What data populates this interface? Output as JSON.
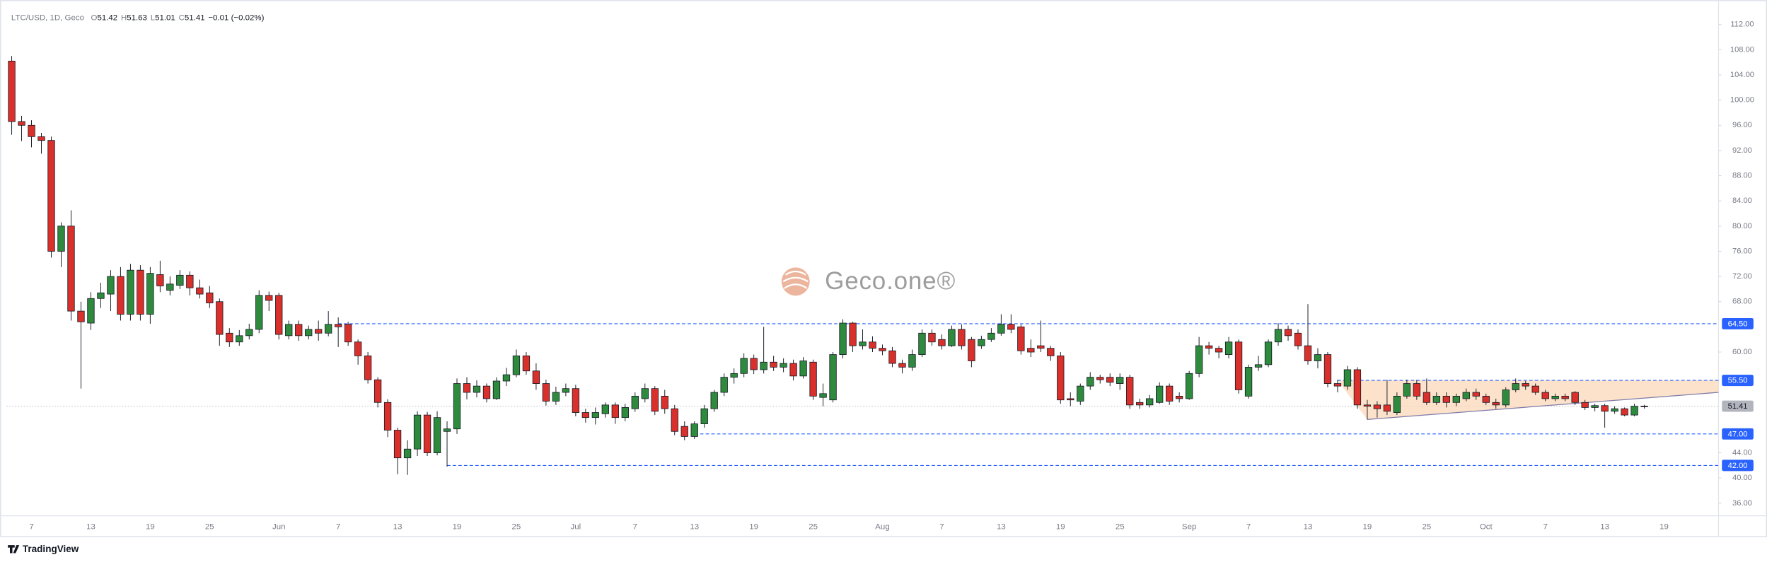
{
  "chart_data": {
    "type": "candlestick",
    "title": "LTC/USD, 1D, Geco",
    "legend": [
      {
        "label": "O",
        "value": 51.42
      },
      {
        "label": "H",
        "value": 51.63
      },
      {
        "label": "L",
        "value": 51.01
      },
      {
        "label": "C",
        "value": 51.41
      }
    ],
    "change": "−0.01 (−0.02%)",
    "watermark": "Geco.one®",
    "footer": "TradingView",
    "up_color": "#2e8b3e",
    "down_color": "#d9302c",
    "line_color": "#2962ff",
    "price_color": "#b2b5be",
    "pattern_color": "#fbd8b8",
    "grid": false,
    "ylim": [
      34,
      115
    ],
    "yticks": [
      {
        "value": 36,
        "label": "36.00"
      },
      {
        "value": 40,
        "label": "40.00"
      },
      {
        "value": 44,
        "label": "44.00"
      },
      {
        "value": 60,
        "label": "60.00"
      },
      {
        "value": 68,
        "label": "68.00"
      },
      {
        "value": 72,
        "label": "72.00"
      },
      {
        "value": 76,
        "label": "76.00"
      },
      {
        "value": 80,
        "label": "80.00"
      },
      {
        "value": 84,
        "label": "84.00"
      },
      {
        "value": 88,
        "label": "88.00"
      },
      {
        "value": 92,
        "label": "92.00"
      },
      {
        "value": 96,
        "label": "96.00"
      },
      {
        "value": 100,
        "label": "100.00"
      },
      {
        "value": 104,
        "label": "104.00"
      },
      {
        "value": 108,
        "label": "108.00"
      },
      {
        "value": 112,
        "label": "112.00"
      }
    ],
    "hlines": [
      {
        "value": 64.5,
        "label": "64.50"
      },
      {
        "value": 55.5,
        "label": "55.50"
      },
      {
        "value": 47,
        "label": "47.00"
      },
      {
        "value": 42,
        "label": "42.00"
      }
    ],
    "last_price": {
      "value": 51.41,
      "label": "51.41"
    },
    "trendline": [
      49.3,
      53.6
    ],
    "categories": [
      null,
      null,
      "7",
      null,
      null,
      null,
      null,
      null,
      "13",
      null,
      null,
      null,
      null,
      null,
      "19",
      null,
      null,
      null,
      null,
      null,
      "25",
      null,
      null,
      null,
      null,
      null,
      null,
      "Jun",
      null,
      null,
      null,
      null,
      null,
      "7",
      null,
      null,
      null,
      null,
      null,
      "13",
      null,
      null,
      null,
      null,
      null,
      "19",
      null,
      null,
      null,
      null,
      null,
      "25",
      null,
      null,
      null,
      null,
      null,
      "Jul",
      null,
      null,
      null,
      null,
      null,
      "7",
      null,
      null,
      null,
      null,
      null,
      "13",
      null,
      null,
      null,
      null,
      null,
      "19",
      null,
      null,
      null,
      null,
      null,
      "25",
      null,
      null,
      null,
      null,
      null,
      null,
      "Aug",
      null,
      null,
      null,
      null,
      null,
      "7",
      null,
      null,
      null,
      null,
      null,
      "13",
      null,
      null,
      null,
      null,
      null,
      "19",
      null,
      null,
      null,
      null,
      null,
      "25",
      null,
      null,
      null,
      null,
      null,
      null,
      "Sep",
      null,
      null,
      null,
      null,
      null,
      "7",
      null,
      null,
      null,
      null,
      null,
      "13",
      null,
      null,
      null,
      null,
      null,
      "19",
      null,
      null,
      null,
      null,
      null,
      "25",
      null,
      null,
      null,
      null,
      null,
      "Oct",
      null,
      null,
      null,
      null,
      null,
      "7",
      null,
      null,
      null,
      null,
      null,
      "13",
      null,
      null,
      null,
      null,
      null,
      "19",
      null,
      null,
      null,
      null,
      null
    ],
    "open": [
      106.2,
      96.6,
      96,
      94.2,
      93.6,
      76,
      80,
      66.5,
      64.6,
      68.5,
      69.2,
      72,
      66,
      73,
      66,
      72.3,
      69.8,
      70.6,
      72.2,
      70.2,
      69.4,
      68,
      63,
      61.6,
      62.6,
      63.6,
      69,
      69,
      62.6,
      64.4,
      62.6,
      63.6,
      63,
      64.4,
      64.4,
      61.6,
      59.4,
      55.6,
      52,
      47.6,
      43.2,
      44.6,
      50,
      44,
      47.4,
      47.8,
      55,
      53.6,
      54.6,
      52.6,
      55.4,
      56.4,
      59.4,
      57,
      55,
      52.2,
      53.6,
      54.2,
      50.4,
      49.6,
      50.2,
      51.6,
      49.6,
      51,
      52.6,
      54.2,
      53,
      51,
      48.2,
      46.6,
      48.6,
      51,
      53.6,
      56,
      56.6,
      59,
      57.2,
      58.4,
      57.6,
      58.2,
      56.2,
      58.4,
      52.8,
      52.4,
      59.6,
      64.6,
      61,
      61.6,
      60.6,
      60.2,
      58.2,
      57.6,
      59.6,
      63,
      62,
      61,
      63.6,
      62,
      61,
      62,
      63,
      64.4,
      64,
      60.6,
      61,
      60.6,
      59.4,
      52.6,
      52.2,
      54.6,
      56,
      56,
      55,
      56,
      52,
      51.6,
      52,
      54.6,
      53,
      52.6,
      56.6,
      61,
      60.6,
      59.6,
      61.6,
      53,
      57.6,
      58,
      61.6,
      63.6,
      63,
      61,
      58.6,
      59.6,
      55,
      54.6,
      57.2,
      51.6,
      51.6,
      51.6,
      50.4,
      53,
      55,
      53.6,
      52,
      53,
      52,
      52.6,
      53.6,
      53,
      52,
      51.6,
      54,
      55,
      54.6,
      53.6,
      52.6,
      53,
      53.6,
      52,
      51.2,
      51.5,
      50.6,
      51,
      50,
      51.42,
      null,
      null,
      null,
      null,
      null,
      null,
      null
    ],
    "high": [
      107,
      97.5,
      96.8,
      94.8,
      94.2,
      80.6,
      82.5,
      68,
      69.5,
      71,
      73,
      73.5,
      74,
      73.8,
      73.5,
      74.5,
      72,
      73,
      72.8,
      71.5,
      70.5,
      68.5,
      63.8,
      63.5,
      64.5,
      69.8,
      69.6,
      69.4,
      65,
      65,
      64.2,
      65,
      66.5,
      65.5,
      64.8,
      62,
      60,
      56,
      52.5,
      48,
      46,
      50.6,
      50.5,
      50.6,
      49,
      55.8,
      56,
      55.5,
      55,
      56,
      57.5,
      60.4,
      60,
      58.2,
      55.6,
      54.5,
      55,
      54.8,
      51,
      51.2,
      52,
      52,
      51.8,
      53.6,
      55,
      54.6,
      54,
      51.6,
      49,
      49,
      51.6,
      54,
      56.6,
      57.4,
      59.8,
      59.6,
      64,
      59.4,
      59,
      58.8,
      59.2,
      58.8,
      55,
      60,
      65.2,
      64.8,
      63.6,
      62.5,
      61.2,
      60.8,
      58.8,
      60.4,
      63.6,
      63.6,
      62.8,
      64.2,
      64.4,
      62.4,
      62.6,
      63.8,
      66,
      66,
      64.4,
      62,
      65,
      61,
      60,
      53.6,
      55,
      56.8,
      56.4,
      56.6,
      56.6,
      56.4,
      52.6,
      53.2,
      55.2,
      55,
      53.6,
      57,
      62.4,
      61.6,
      61,
      62.4,
      62,
      58,
      59.4,
      62,
      64.6,
      64.2,
      63.6,
      67.6,
      60.6,
      60,
      55.6,
      57.8,
      57.6,
      52.4,
      52.2,
      55.6,
      53.6,
      55.6,
      55.6,
      55.8,
      53.6,
      53.6,
      53.4,
      54.2,
      54.2,
      53.4,
      52.6,
      54.4,
      55.8,
      55.4,
      55,
      54,
      53.4,
      53.4,
      53.8,
      52.4,
      51.8,
      51.8,
      51.4,
      51.2,
      51.8,
      51.63,
      null,
      null,
      null,
      null,
      null,
      null,
      null
    ],
    "low": [
      94.5,
      93.5,
      92.5,
      91.5,
      75,
      73.5,
      65,
      54.2,
      63.5,
      67,
      66.5,
      65,
      65,
      65,
      64.5,
      69.5,
      69,
      70,
      69,
      68.5,
      67,
      61,
      60.8,
      61,
      62,
      63,
      66.5,
      62,
      62,
      61.8,
      62,
      61.8,
      62.5,
      60.8,
      61,
      58,
      55,
      51.2,
      46.5,
      40.6,
      40.5,
      43.5,
      43.5,
      43.6,
      41.8,
      47,
      52.5,
      52.8,
      52,
      52.4,
      54.6,
      56,
      56.4,
      54,
      51.5,
      51.6,
      53,
      49.8,
      48.8,
      48.5,
      49.6,
      48.6,
      49,
      50.5,
      52,
      50,
      50.2,
      46.8,
      46,
      46.2,
      48,
      50.5,
      53,
      55,
      56,
      56.5,
      56.6,
      57,
      56.8,
      55.5,
      55.8,
      52.4,
      51.4,
      52,
      59,
      60,
      60.4,
      60,
      59.5,
      57.6,
      56.6,
      57,
      59.2,
      61,
      60.4,
      60.8,
      60.4,
      57.6,
      60.5,
      61.6,
      62.6,
      63,
      59.6,
      59.2,
      60,
      58.6,
      51.8,
      51.4,
      51.6,
      54,
      55,
      54.6,
      54,
      51,
      51,
      51.2,
      51.8,
      51.6,
      52,
      52.4,
      56,
      59.6,
      59,
      59,
      53.4,
      52.6,
      57,
      57.6,
      61,
      61.8,
      60.4,
      58,
      57.4,
      54.4,
      53.6,
      54,
      51,
      49.3,
      49.6,
      50,
      50,
      52.6,
      52.4,
      51.6,
      51.6,
      51.2,
      51.4,
      52.2,
      52.4,
      51.6,
      51,
      51.2,
      53.6,
      54,
      53.2,
      52.2,
      52.2,
      52.2,
      51.6,
      50.8,
      50.6,
      48,
      50.2,
      49.8,
      49.8,
      51.01,
      null,
      null,
      null,
      null,
      null,
      null,
      null
    ],
    "close": [
      96.6,
      96,
      94.2,
      93.6,
      76,
      80,
      66.5,
      64.8,
      68.5,
      69.4,
      72,
      66,
      73,
      66,
      72.5,
      70.5,
      70.8,
      72.2,
      70.2,
      69.2,
      67.8,
      62.8,
      61.6,
      62.6,
      63.6,
      69,
      68.2,
      62.8,
      64.4,
      62.6,
      63.6,
      63,
      64.4,
      64,
      61.6,
      59.4,
      55.6,
      52,
      47.6,
      43.2,
      44.6,
      50,
      44,
      49.6,
      47.8,
      55,
      53.6,
      54.6,
      52.6,
      55.4,
      56.4,
      59.4,
      57,
      55,
      52.2,
      53.6,
      54.2,
      50.4,
      49.6,
      50.4,
      51.6,
      49.6,
      51.2,
      53,
      54.2,
      50.6,
      51,
      47.4,
      46.6,
      48.6,
      51,
      53.6,
      56,
      56.6,
      59,
      57.2,
      58.4,
      57.6,
      58.2,
      56.2,
      58.6,
      53,
      53.4,
      59.6,
      64.6,
      61,
      61.6,
      60.6,
      60.2,
      58.2,
      57.6,
      59.6,
      63,
      61.6,
      61,
      63.6,
      61,
      58.6,
      62,
      63,
      64.4,
      63.6,
      60.2,
      60,
      60.6,
      59.4,
      52.4,
      52.4,
      54.6,
      56,
      55.6,
      55.2,
      56,
      51.6,
      51.6,
      52.6,
      54.6,
      52.2,
      52.6,
      56.6,
      61,
      60.6,
      60,
      61.6,
      54,
      57.6,
      58,
      61.6,
      63.6,
      62.6,
      61,
      58.6,
      59.6,
      55,
      54.6,
      57.2,
      51.6,
      51.4,
      51,
      50.6,
      53,
      55,
      53,
      52,
      53,
      52,
      53,
      53.6,
      53,
      52,
      51.6,
      54,
      55,
      54.6,
      53.6,
      52.6,
      53,
      52.6,
      52,
      51.2,
      51.5,
      50.6,
      51,
      50,
      51.4,
      51.41,
      null,
      null,
      null,
      null,
      null,
      null,
      null
    ]
  }
}
